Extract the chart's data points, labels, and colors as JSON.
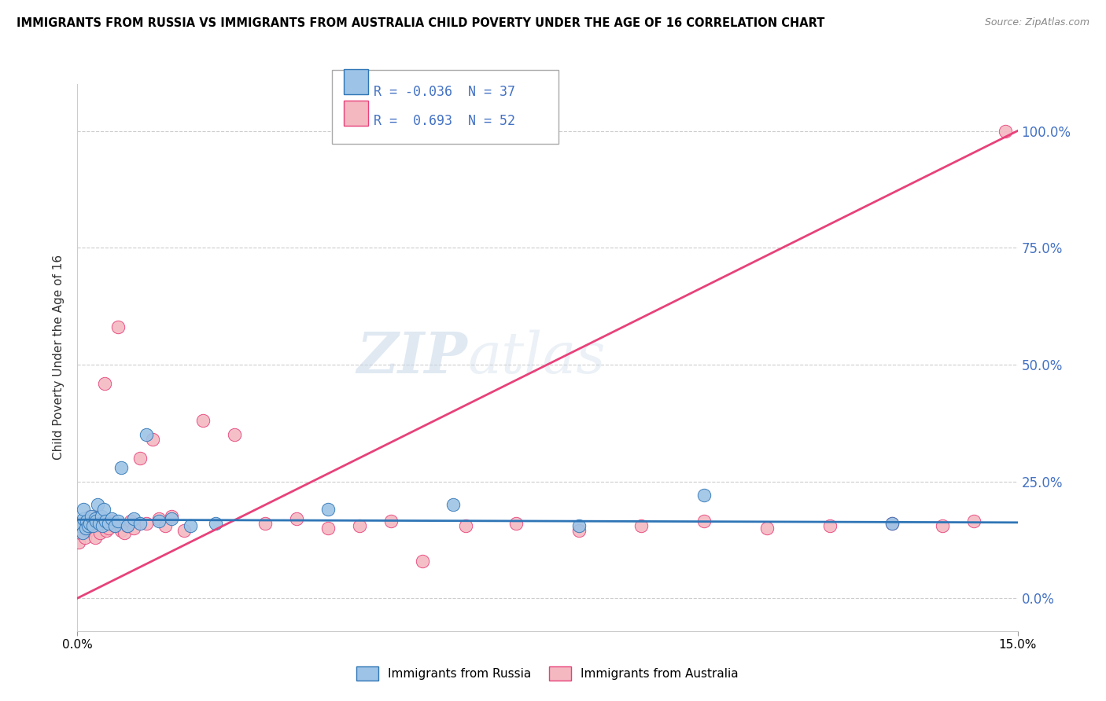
{
  "title": "IMMIGRANTS FROM RUSSIA VS IMMIGRANTS FROM AUSTRALIA CHILD POVERTY UNDER THE AGE OF 16 CORRELATION CHART",
  "source": "Source: ZipAtlas.com",
  "ylabel": "Child Poverty Under the Age of 16",
  "xlim": [
    0.0,
    0.15
  ],
  "ylim": [
    -0.07,
    1.1
  ],
  "yticks": [
    0.0,
    0.25,
    0.5,
    0.75,
    1.0
  ],
  "ytick_labels": [
    "0.0%",
    "25.0%",
    "50.0%",
    "75.0%",
    "100.0%"
  ],
  "xticks": [
    0.0,
    0.15
  ],
  "xtick_labels": [
    "0.0%",
    "15.0%"
  ],
  "russia_color": "#9dc3e6",
  "australia_color": "#f4b8c1",
  "russia_line_color": "#2e75b6",
  "australia_line_color": "#e8417a",
  "russia_R": -0.036,
  "russia_N": 37,
  "australia_R": 0.693,
  "australia_N": 52,
  "watermark_zip": "ZIP",
  "watermark_atlas": "atlas",
  "russia_x": [
    0.0003,
    0.0005,
    0.0008,
    0.001,
    0.001,
    0.0013,
    0.0015,
    0.0017,
    0.002,
    0.0022,
    0.0025,
    0.0028,
    0.003,
    0.0032,
    0.0035,
    0.0038,
    0.004,
    0.0042,
    0.0045,
    0.005,
    0.0055,
    0.006,
    0.0065,
    0.007,
    0.008,
    0.009,
    0.01,
    0.011,
    0.013,
    0.015,
    0.018,
    0.022,
    0.04,
    0.06,
    0.08,
    0.1,
    0.13
  ],
  "russia_y": [
    0.155,
    0.16,
    0.14,
    0.17,
    0.19,
    0.15,
    0.165,
    0.155,
    0.16,
    0.175,
    0.155,
    0.17,
    0.165,
    0.2,
    0.16,
    0.175,
    0.155,
    0.19,
    0.165,
    0.16,
    0.17,
    0.155,
    0.165,
    0.28,
    0.155,
    0.17,
    0.16,
    0.35,
    0.165,
    0.17,
    0.155,
    0.16,
    0.19,
    0.2,
    0.155,
    0.22,
    0.16
  ],
  "australia_x": [
    0.0002,
    0.0005,
    0.0007,
    0.001,
    0.0012,
    0.0015,
    0.0017,
    0.002,
    0.0022,
    0.0025,
    0.0028,
    0.003,
    0.0033,
    0.0036,
    0.004,
    0.0043,
    0.0046,
    0.005,
    0.0055,
    0.006,
    0.0065,
    0.007,
    0.0075,
    0.008,
    0.0085,
    0.009,
    0.01,
    0.011,
    0.012,
    0.013,
    0.014,
    0.015,
    0.017,
    0.02,
    0.025,
    0.03,
    0.035,
    0.04,
    0.045,
    0.05,
    0.055,
    0.062,
    0.07,
    0.08,
    0.09,
    0.1,
    0.11,
    0.12,
    0.13,
    0.138,
    0.143,
    0.148
  ],
  "australia_y": [
    0.12,
    0.14,
    0.155,
    0.16,
    0.13,
    0.15,
    0.145,
    0.175,
    0.155,
    0.165,
    0.13,
    0.155,
    0.175,
    0.14,
    0.16,
    0.46,
    0.145,
    0.15,
    0.165,
    0.155,
    0.58,
    0.145,
    0.14,
    0.155,
    0.165,
    0.15,
    0.3,
    0.16,
    0.34,
    0.17,
    0.155,
    0.175,
    0.145,
    0.38,
    0.35,
    0.16,
    0.17,
    0.15,
    0.155,
    0.165,
    0.08,
    0.155,
    0.16,
    0.145,
    0.155,
    0.165,
    0.15,
    0.155,
    0.16,
    0.155,
    0.165,
    1.0
  ]
}
